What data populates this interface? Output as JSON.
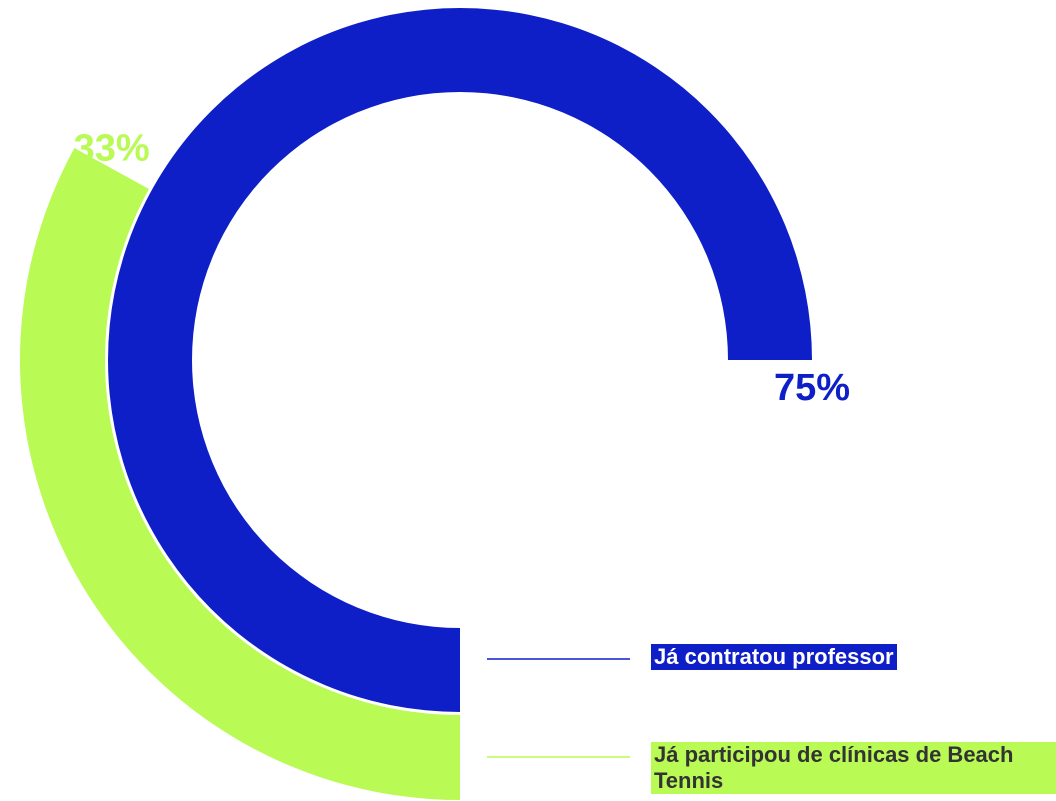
{
  "chart_data": {
    "type": "radial_bar",
    "categories": [
      "Já contratou professor",
      "Já participou de clínicas de Beach Tennis"
    ],
    "values": [
      75,
      33
    ],
    "value_labels": [
      "75%",
      "33%"
    ],
    "colors": [
      "#0f1fc8",
      "#b9fa55"
    ],
    "ylim": [
      0,
      100
    ]
  }
}
